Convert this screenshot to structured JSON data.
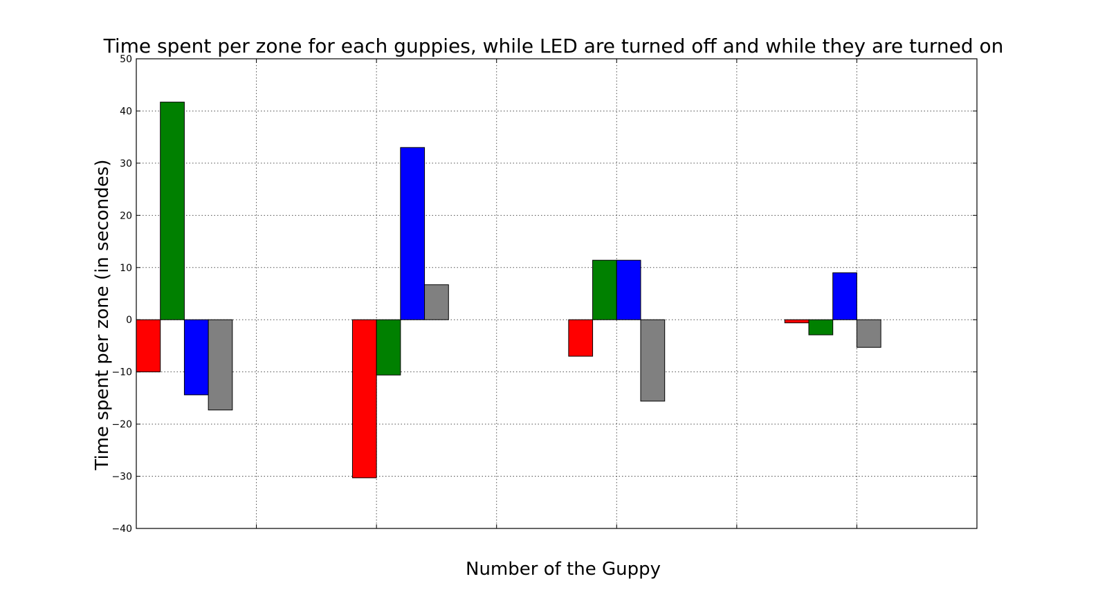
{
  "chart_data": {
    "type": "bar",
    "title": "Time spent per zone for each guppies, while LED are turned off and while they are turned on",
    "xlabel": "Number of the Guppy",
    "ylabel": "Time spent per zone (in secondes)",
    "ylim": [
      -40,
      50
    ],
    "yticks": [
      -40,
      -30,
      -20,
      -10,
      0,
      10,
      20,
      30,
      40,
      50
    ],
    "ytick_labels": [
      "−40",
      "−30",
      "−20",
      "−10",
      "0",
      "10",
      "20",
      "30",
      "40",
      "50"
    ],
    "xlim": [
      0,
      7
    ],
    "x_grid_positions": [
      1,
      2,
      3,
      4,
      5,
      6
    ],
    "group_start_x": [
      0,
      1.8,
      3.6,
      5.4
    ],
    "bar_width": 0.2,
    "grid": true,
    "series": [
      {
        "color": "#ff0000",
        "values": [
          -10.0,
          -30.3,
          -7.0,
          -0.6
        ]
      },
      {
        "color": "#008000",
        "values": [
          41.7,
          -10.6,
          11.4,
          -2.9
        ]
      },
      {
        "color": "#0000ff",
        "values": [
          -14.4,
          33.0,
          11.4,
          9.0
        ]
      },
      {
        "color": "#808080",
        "values": [
          -17.3,
          6.7,
          -15.6,
          -5.3
        ]
      }
    ]
  }
}
